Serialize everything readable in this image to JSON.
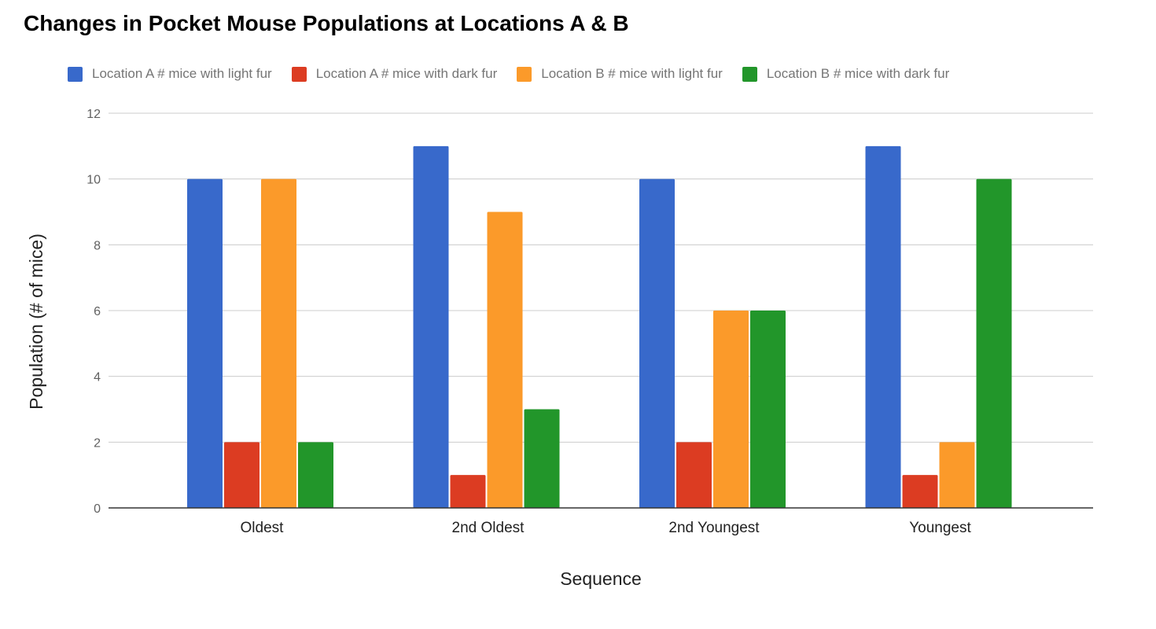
{
  "chart_data": {
    "type": "bar",
    "title": "Changes in Pocket Mouse Populations at Locations A & B",
    "xlabel": "Sequence",
    "ylabel": "Population (# of mice)",
    "categories": [
      "Oldest",
      "2nd Oldest",
      "2nd Youngest",
      "Youngest"
    ],
    "series": [
      {
        "name": "Location A # mice with light fur",
        "color": "#3869CB",
        "values": [
          10,
          11,
          10,
          11
        ]
      },
      {
        "name": "Location A # mice with dark fur",
        "color": "#DC3C22",
        "values": [
          2,
          1,
          2,
          1
        ]
      },
      {
        "name": "Location B # mice with light fur",
        "color": "#FB9A2A",
        "values": [
          10,
          9,
          6,
          2
        ]
      },
      {
        "name": "Location B # mice with dark fur",
        "color": "#22962A",
        "values": [
          2,
          3,
          6,
          10
        ]
      }
    ],
    "ylim": [
      0,
      12
    ],
    "yticks": [
      0,
      2,
      4,
      6,
      8,
      10,
      12
    ],
    "grid": true,
    "legend_position": "top-left"
  }
}
